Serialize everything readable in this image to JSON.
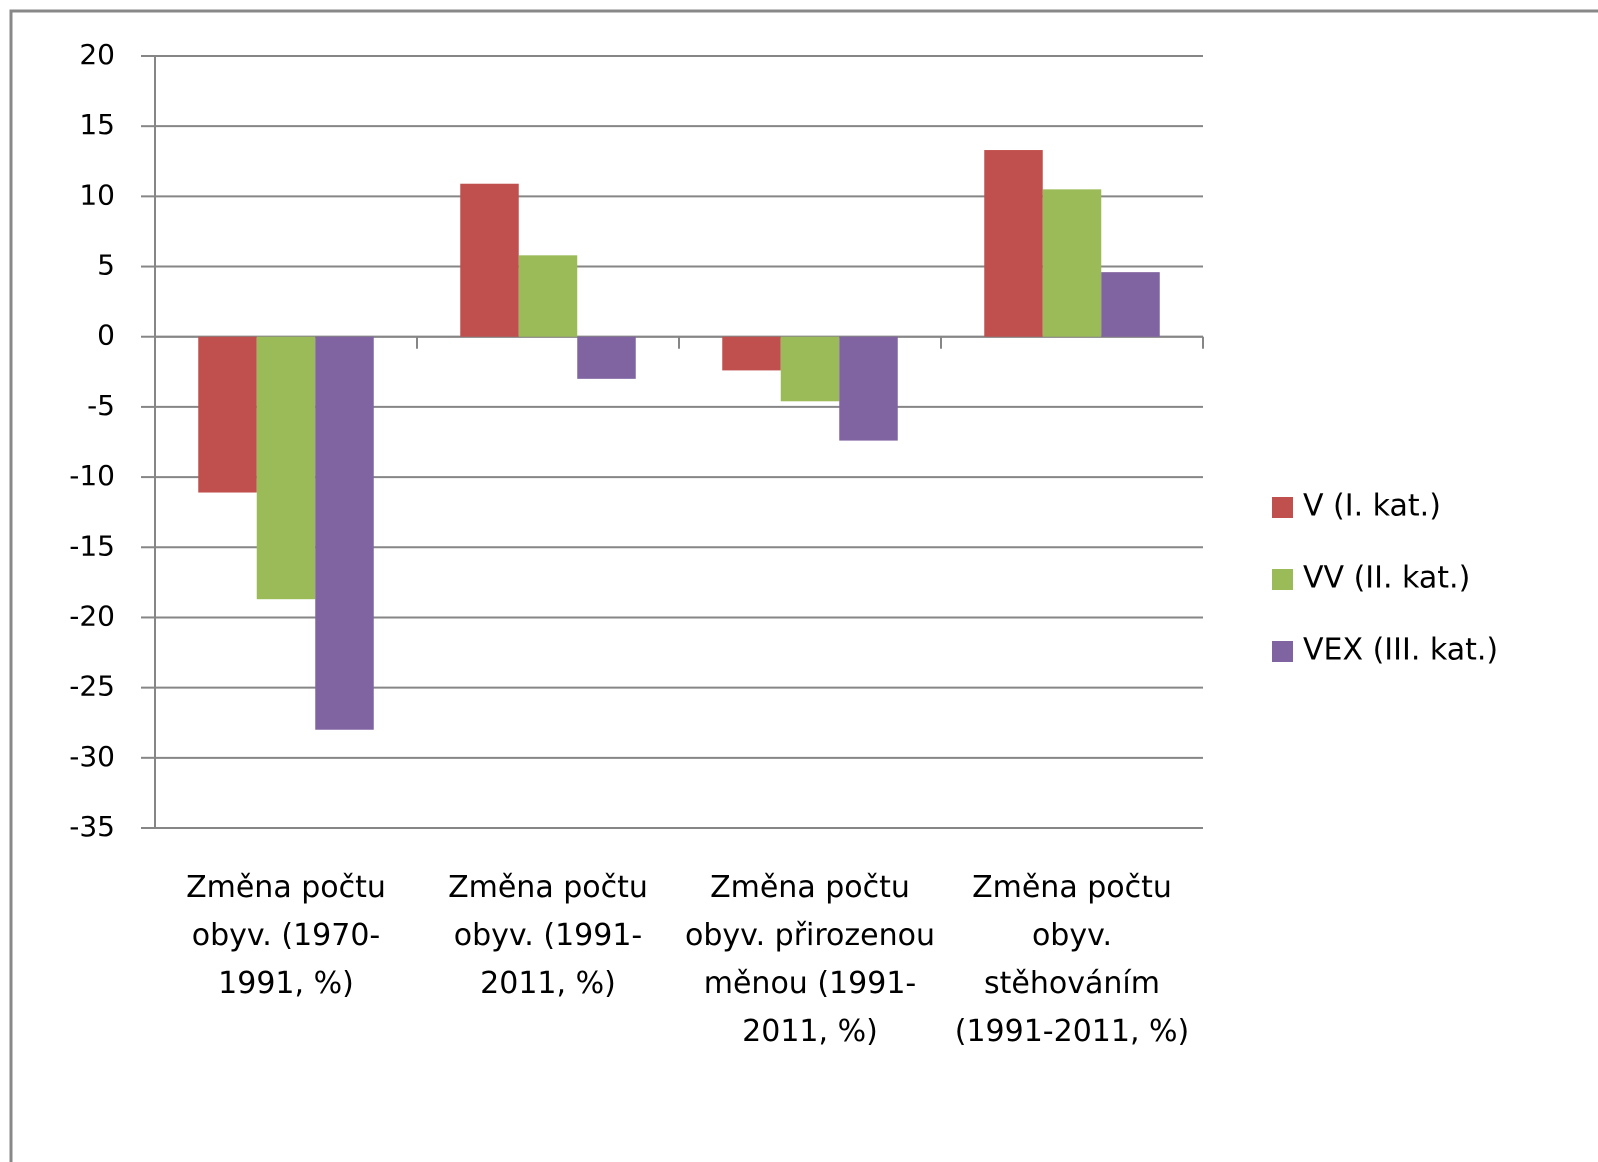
{
  "chart_data": {
    "type": "bar",
    "categories": [
      "Změna počtu obyv. (1970-1991, %)",
      "Změna počtu obyv. (1991-2011, %)",
      "Změna počtu obyv. přirozenou měnou (1991-2011, %)",
      "Změna počtu obyv. stěhováním (1991-2011, %)"
    ],
    "series": [
      {
        "name": "V (I. kat.)",
        "color": "#c0504d",
        "values": [
          -11.1,
          10.9,
          -2.4,
          13.3
        ]
      },
      {
        "name": "VV (II. kat.)",
        "color": "#9bbb59",
        "values": [
          -18.7,
          5.8,
          -4.6,
          10.5
        ]
      },
      {
        "name": "VEX (III. kat.)",
        "color": "#8064a2",
        "values": [
          -28.0,
          -3.0,
          -7.4,
          4.6
        ]
      }
    ],
    "ylim": [
      -35,
      20
    ],
    "yticks": [
      -35,
      -30,
      -25,
      -20,
      -15,
      -10,
      -5,
      0,
      5,
      10,
      15,
      20
    ],
    "grid": true,
    "legend": "right"
  }
}
